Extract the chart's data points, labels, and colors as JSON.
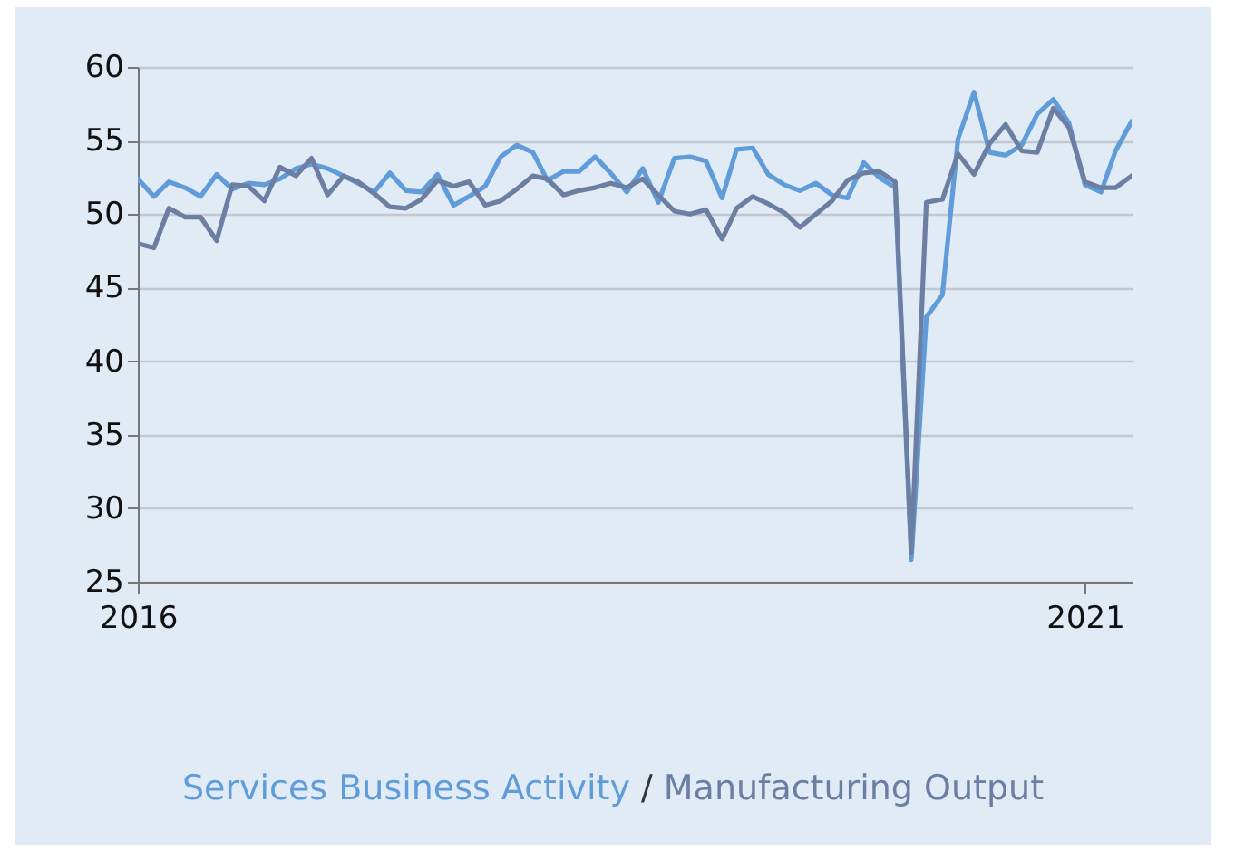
{
  "chart_data": {
    "type": "line",
    "x": [
      "2016-01",
      "2016-02",
      "2016-03",
      "2016-04",
      "2016-05",
      "2016-06",
      "2016-07",
      "2016-08",
      "2016-09",
      "2016-10",
      "2016-11",
      "2016-12",
      "2017-01",
      "2017-02",
      "2017-03",
      "2017-04",
      "2017-05",
      "2017-06",
      "2017-07",
      "2017-08",
      "2017-09",
      "2017-10",
      "2017-11",
      "2017-12",
      "2018-01",
      "2018-02",
      "2018-03",
      "2018-04",
      "2018-05",
      "2018-06",
      "2018-07",
      "2018-08",
      "2018-09",
      "2018-10",
      "2018-11",
      "2018-12",
      "2019-01",
      "2019-02",
      "2019-03",
      "2019-04",
      "2019-05",
      "2019-06",
      "2019-07",
      "2019-08",
      "2019-09",
      "2019-10",
      "2019-11",
      "2019-12",
      "2020-01",
      "2020-02",
      "2020-03",
      "2020-04",
      "2020-05",
      "2020-06",
      "2020-07",
      "2020-08",
      "2020-09",
      "2020-10",
      "2020-11",
      "2020-12",
      "2021-01",
      "2021-02",
      "2021-03",
      "2021-04"
    ],
    "series": [
      {
        "name": "Services Business Activity",
        "color": "#5f9cd9",
        "values": [
          52.4,
          51.2,
          52.2,
          51.8,
          51.2,
          52.7,
          51.7,
          52.1,
          52.0,
          52.4,
          53.1,
          53.4,
          53.1,
          52.6,
          52.1,
          51.5,
          52.8,
          51.6,
          51.5,
          52.7,
          50.6,
          51.2,
          51.9,
          53.9,
          54.7,
          54.2,
          52.3,
          52.9,
          52.9,
          53.9,
          52.8,
          51.5,
          53.1,
          50.8,
          53.8,
          53.9,
          53.6,
          51.1,
          54.4,
          54.5,
          52.7,
          52.0,
          51.6,
          52.1,
          51.3,
          51.1,
          53.5,
          52.5,
          51.8,
          26.5,
          43.0,
          44.5,
          55.1,
          58.3,
          54.2,
          54.0,
          54.7,
          56.8,
          57.8,
          56.2,
          52.0,
          51.5,
          54.3,
          56.3
        ]
      },
      {
        "name": "Manufacturing Output",
        "color": "#6c7fa3",
        "values": [
          48.0,
          47.7,
          50.4,
          49.8,
          49.8,
          48.2,
          52.0,
          51.9,
          50.9,
          53.2,
          52.6,
          53.8,
          51.3,
          52.6,
          52.2,
          51.4,
          50.5,
          50.4,
          51.0,
          52.3,
          51.9,
          52.2,
          50.6,
          50.9,
          51.7,
          52.6,
          52.4,
          51.3,
          51.6,
          51.8,
          52.1,
          51.8,
          52.4,
          51.3,
          50.2,
          50.0,
          50.3,
          48.3,
          50.4,
          51.2,
          50.7,
          50.1,
          49.1,
          50.0,
          50.9,
          52.3,
          52.8,
          52.9,
          52.2,
          27.0,
          50.8,
          51.0,
          54.1,
          52.7,
          54.8,
          56.1,
          54.3,
          54.2,
          57.2,
          55.9,
          52.2,
          51.8,
          51.8,
          52.6
        ]
      }
    ],
    "xlim": [
      "2016-01",
      "2021-04"
    ],
    "xticks": [
      {
        "value": "2016-01",
        "label": "2016"
      },
      {
        "value": "2021-01",
        "label": "2021"
      }
    ],
    "ylim": [
      25,
      60
    ],
    "yticks": [
      25,
      30,
      35,
      40,
      45,
      50,
      55,
      60
    ],
    "annotations": [
      "/"
    ],
    "grid": "y",
    "legend": "bottom",
    "line_style": "solid",
    "marker": "none"
  }
}
